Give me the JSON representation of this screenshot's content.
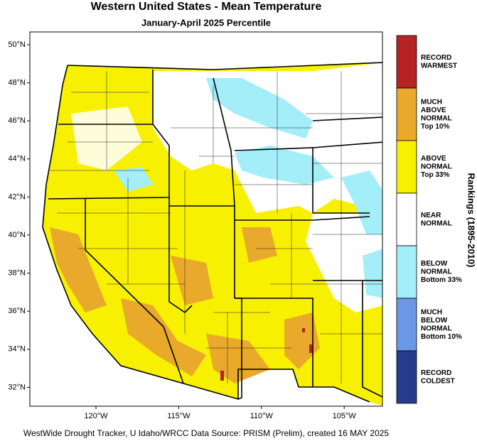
{
  "title": "Western United States - Mean Temperature",
  "subtitle": "January-April 2025 Percentile",
  "map": {
    "lat_labels": [
      "50°N",
      "48°N",
      "46°N",
      "44°N",
      "42°N",
      "40°N",
      "38°N",
      "36°N",
      "34°N",
      "32°N"
    ],
    "lon_labels": [
      "120°W",
      "115°W",
      "110°W",
      "105°W"
    ]
  },
  "legend": {
    "title": "Rankings (1895-2010)",
    "items": [
      {
        "lines": [
          "RECORD",
          "WARMEST"
        ],
        "color": "#b52324"
      },
      {
        "lines": [
          "MUCH",
          "ABOVE",
          "NORMAL",
          "Top 10%"
        ],
        "color": "#e9a92a"
      },
      {
        "lines": [
          "ABOVE",
          "NORMAL",
          "Top 33%"
        ],
        "color": "#f7f000"
      },
      {
        "lines": [
          "NEAR",
          "NORMAL"
        ],
        "color": "#ffffff"
      },
      {
        "lines": [
          "BELOW",
          "NORMAL",
          "Bottom 33%"
        ],
        "color": "#a3eef8"
      },
      {
        "lines": [
          "MUCH",
          "BELOW",
          "NORMAL",
          "Bottom 10%"
        ],
        "color": "#6b98e6"
      },
      {
        "lines": [
          "RECORD",
          "COLDEST"
        ],
        "color": "#263d8c"
      }
    ]
  },
  "footer": "WestWide Drought Tracker, U Idaho/WRCC Data Source: PRISM (Prelim), created 16 MAY 2025"
}
